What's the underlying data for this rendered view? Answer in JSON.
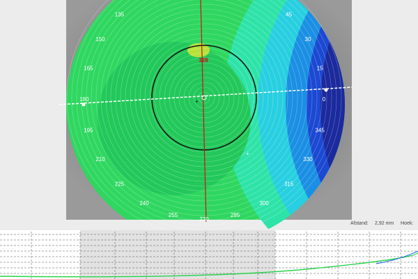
{
  "angle_labels": [
    "0",
    "15",
    "30",
    "45",
    "135",
    "150",
    "165",
    "180",
    "195",
    "210",
    "225",
    "240",
    "255",
    "270",
    "285",
    "300",
    "315",
    "330",
    "345"
  ],
  "marker_label": "328",
  "status": {
    "distance_label": "Afstand:",
    "distance_value": "2,92 mm",
    "angle_label": "Hoek:"
  }
}
